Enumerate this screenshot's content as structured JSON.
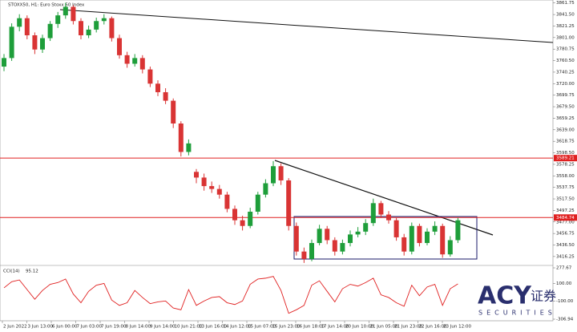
{
  "chart_data": {
    "type": "candlestick",
    "title": "STOXX50, H1: Euro Stoxx 50 Index",
    "open": [
      3750,
      3765,
      3820,
      3835,
      3805,
      3780,
      3800,
      3825,
      3840,
      3855,
      3830,
      3805,
      3815,
      3830,
      3835,
      3800,
      3770,
      3755,
      3765,
      3745,
      3720,
      3705,
      3690,
      3650,
      3600,
      3565,
      3555,
      3540,
      3535,
      3525,
      3500,
      3480,
      3470,
      3495,
      3525,
      3545,
      3575,
      3550,
      3470,
      3425,
      3412,
      3440,
      3465,
      3445,
      3425,
      3440,
      3455,
      3460,
      3475,
      3510,
      3490,
      3480,
      3450,
      3425,
      3470,
      3440,
      3460,
      3470,
      3420,
      3445
    ],
    "high": [
      3772,
      3826,
      3842,
      3840,
      3810,
      3806,
      3830,
      3846,
      3862,
      3858,
      3835,
      3822,
      3836,
      3842,
      3838,
      3806,
      3776,
      3772,
      3770,
      3750,
      3726,
      3712,
      3694,
      3654,
      3622,
      3570,
      3562,
      3548,
      3542,
      3530,
      3506,
      3488,
      3502,
      3530,
      3552,
      3584,
      3580,
      3554,
      3476,
      3432,
      3446,
      3472,
      3470,
      3450,
      3446,
      3462,
      3468,
      3482,
      3518,
      3514,
      3496,
      3484,
      3456,
      3476,
      3474,
      3466,
      3478,
      3474,
      3452,
      3484
    ],
    "low": [
      3742,
      3760,
      3812,
      3798,
      3772,
      3774,
      3795,
      3818,
      3834,
      3824,
      3798,
      3800,
      3810,
      3824,
      3794,
      3764,
      3748,
      3750,
      3738,
      3714,
      3698,
      3684,
      3642,
      3592,
      3594,
      3545,
      3532,
      3528,
      3518,
      3494,
      3472,
      3462,
      3466,
      3490,
      3520,
      3540,
      3542,
      3462,
      3418,
      3405,
      3408,
      3436,
      3438,
      3418,
      3420,
      3434,
      3450,
      3454,
      3470,
      3484,
      3474,
      3444,
      3418,
      3420,
      3434,
      3436,
      3454,
      3414,
      3416,
      3440
    ],
    "close": [
      3765,
      3820,
      3835,
      3805,
      3780,
      3800,
      3825,
      3840,
      3855,
      3830,
      3805,
      3815,
      3830,
      3835,
      3800,
      3770,
      3755,
      3765,
      3745,
      3720,
      3705,
      3690,
      3650,
      3600,
      3615,
      3555,
      3540,
      3535,
      3525,
      3500,
      3480,
      3470,
      3495,
      3525,
      3545,
      3575,
      3550,
      3470,
      3425,
      3412,
      3440,
      3465,
      3445,
      3425,
      3440,
      3455,
      3460,
      3475,
      3510,
      3490,
      3480,
      3450,
      3425,
      3470,
      3440,
      3460,
      3470,
      3420,
      3445,
      3480
    ],
    "up_color": "#1e9e3a",
    "down_color": "#d93434",
    "ylim": [
      3402,
      3867
    ],
    "yticks": [
      3416.25,
      {
        "value": 3436.5,
        "label": "3436.50"
      },
      3456.75,
      {
        "value": 3477,
        "label": "3477.00"
      },
      3497.25,
      {
        "value": 3517.5,
        "label": "3517.50"
      },
      3537.75,
      {
        "value": 3558,
        "label": "3558.00"
      },
      3578.25,
      {
        "value": 3598.5,
        "label": "3598.50"
      },
      3618.75,
      {
        "value": 3639,
        "label": "3639.00"
      },
      3659.25,
      {
        "value": 3679.5,
        "label": "3679.50"
      },
      3699.75,
      {
        "value": 3720,
        "label": "3720.00"
      },
      3740.25,
      {
        "value": 3760.5,
        "label": "3760.50"
      },
      3780.75,
      {
        "value": 3801,
        "label": "3801.00"
      },
      3821.25,
      {
        "value": 3841.5,
        "label": "3841.50"
      },
      3861.75
    ],
    "hlines": [
      {
        "value": 3589.21,
        "color": "#e02020"
      },
      {
        "value": 3484.74,
        "color": "#e02020"
      }
    ],
    "x_labels": [
      "2 Jun 2022",
      "3 Jun 13:00",
      "6 Jun 00:00",
      "7 Jun 03:00",
      "7 Jun 19:00",
      "8 Jun 14:00",
      "9 Jun 14:00",
      "10 Jun 21:00",
      "13 Jun 16:00",
      "14 Jun 12:00",
      "15 Jun 07:00",
      "15 Jun 23:00",
      "16 Jun 18:00",
      "17 Jun 14:00",
      "20 Jun 10:00",
      "21 Jun 05:00",
      "21 Jun 23:00",
      "22 Jun 16:00",
      "23 Jun 12:00"
    ],
    "indicator": {
      "name": "CCI(14)",
      "color": "#e02020",
      "values": [
        50,
        120,
        140,
        30,
        -80,
        20,
        90,
        110,
        150,
        -20,
        -120,
        10,
        80,
        100,
        -90,
        -150,
        -120,
        20,
        -60,
        -130,
        -110,
        -100,
        -180,
        -200,
        30,
        -150,
        -100,
        -60,
        -50,
        -120,
        -140,
        -100,
        90,
        150,
        160,
        180,
        20,
        -240,
        -200,
        -150,
        80,
        130,
        10,
        -110,
        40,
        90,
        70,
        110,
        160,
        -30,
        -60,
        -120,
        -160,
        80,
        -40,
        60,
        90,
        -150,
        40,
        95.12
      ],
      "ylim": [
        -306.94,
        277.67
      ],
      "yticks": [
        277.67,
        {
          "value": 100,
          "label": "100.00"
        },
        {
          "value": -100,
          "label": "-100.00"
        },
        -306.94
      ]
    }
  },
  "watermark": {
    "brand": "ACY",
    "sub": "SECURITIES",
    "cn": "证券"
  }
}
